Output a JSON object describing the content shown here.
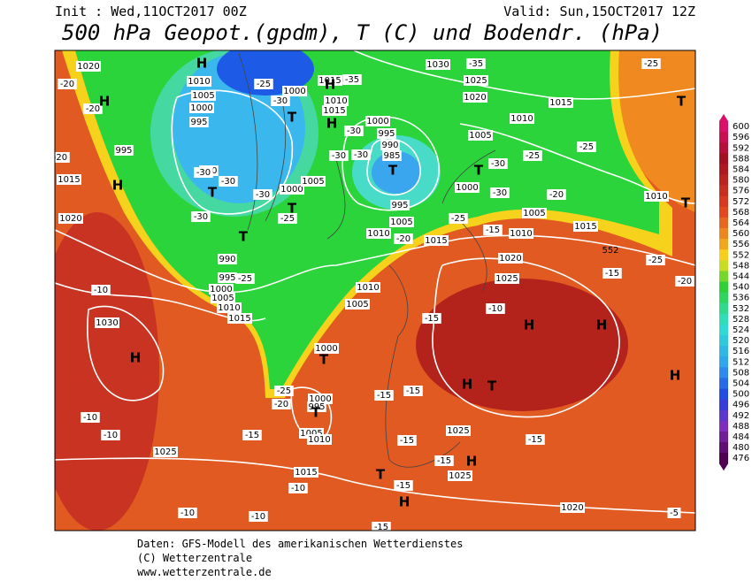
{
  "header": {
    "init": "Init : Wed,11OCT2017 00Z",
    "valid": "Valid: Sun,15OCT2017 12Z",
    "title": "500 hPa Geopot.(gpdm), T (C) und Bodendr. (hPa)"
  },
  "colorbar": {
    "labels": [
      "600",
      "596",
      "592",
      "588",
      "584",
      "580",
      "576",
      "572",
      "568",
      "564",
      "560",
      "556",
      "552",
      "548",
      "544",
      "540",
      "536",
      "532",
      "528",
      "524",
      "520",
      "516",
      "512",
      "508",
      "504",
      "500",
      "496",
      "492",
      "488",
      "484",
      "480",
      "476"
    ]
  },
  "map": {
    "pressure_centers": [
      "H",
      "H",
      "H",
      "T",
      "T",
      "T",
      "T",
      "H",
      "H",
      "T",
      "T",
      "T",
      "T",
      "H",
      "T",
      "T",
      "H",
      "H",
      "H",
      "T",
      "H",
      "T",
      "H",
      "H"
    ],
    "isobar_labels": [
      "1020",
      "1010",
      "1005",
      "1000",
      "995",
      "995",
      "990",
      "1015",
      "1020",
      "1000",
      "1015",
      "1010",
      "1015",
      "1000",
      "995",
      "990",
      "985",
      "1000",
      "1005",
      "995",
      "1005",
      "1010",
      "1030",
      "1025",
      "1020",
      "1015",
      "1010",
      "1005",
      "1000",
      "1005",
      "1010",
      "1015",
      "1010",
      "1015",
      "990",
      "995",
      "1000",
      "1005",
      "1010",
      "1015",
      "1010",
      "1005",
      "1030",
      "1020",
      "1025",
      "1000",
      "1000",
      "995",
      "1005",
      "1010",
      "1015",
      "1025",
      "1025",
      "1025",
      "1020"
    ],
    "temperature_labels": [
      "-20",
      "-20",
      "-25",
      "-30",
      "-35",
      "-35",
      "-25",
      "-20",
      "-30",
      "-30",
      "-30",
      "-30",
      "-25",
      "-30",
      "-30",
      "-30",
      "-30",
      "-30",
      "-25",
      "-25",
      "-20",
      "-25",
      "-20",
      "-15",
      "-25",
      "-20",
      "-15",
      "-25",
      "-10",
      "-10",
      "-15",
      "-25",
      "-20",
      "-15",
      "-15",
      "-10",
      "-10",
      "-15",
      "-15",
      "-15",
      "-15",
      "-15",
      "-10",
      "-10",
      "-10",
      "-5",
      "-15"
    ],
    "geopotential_labels": [
      "552"
    ]
  },
  "footer": {
    "line1": "Daten: GFS-Modell des amerikanischen Wetterdienstes",
    "line2": "(C) Wetterzentrale",
    "line3": "www.wetterzentrale.de"
  }
}
